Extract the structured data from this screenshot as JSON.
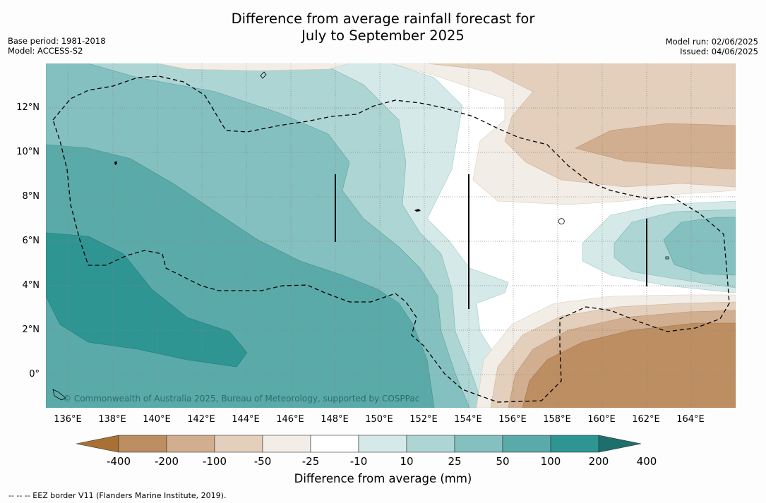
{
  "header": {
    "title_line1": "Difference from average rainfall forecast for",
    "title_line2": "July to September 2025",
    "base_period": "Base period: 1981-2018",
    "model": "Model: ACCESS-S2",
    "model_run": "Model run: 02/06/2025",
    "issued": "Issued: 04/06/2025"
  },
  "map": {
    "longitude_ticks": [
      "136°E",
      "138°E",
      "140°E",
      "142°E",
      "144°E",
      "146°E",
      "148°E",
      "150°E",
      "152°E",
      "154°E",
      "156°E",
      "158°E",
      "160°E",
      "162°E",
      "164°E"
    ],
    "latitude_ticks": [
      "12°N",
      "10°N",
      "8°N",
      "6°N",
      "4°N",
      "2°N",
      "0°"
    ],
    "copyright": "© Commonwealth of Australia 2025, Bureau of Meteorology, supported by COSPPac"
  },
  "colorbar": {
    "labels": [
      "-400",
      "-200",
      "-100",
      "-50",
      "-25",
      "-10",
      "10",
      "25",
      "50",
      "100",
      "200",
      "400"
    ],
    "colors": [
      "#a97034",
      "#bd8e62",
      "#d1ae8f",
      "#e3cfbb",
      "#f3ede7",
      "#ffffff",
      "#d5e9e8",
      "#acd5d4",
      "#84c0bf",
      "#5aaaa9",
      "#2e9593",
      "#1d6f6e"
    ],
    "title": "Difference from average (mm)"
  },
  "footer": "--  --  -- EEZ border V11 (Flanders Marine Institute, 2019)."
}
